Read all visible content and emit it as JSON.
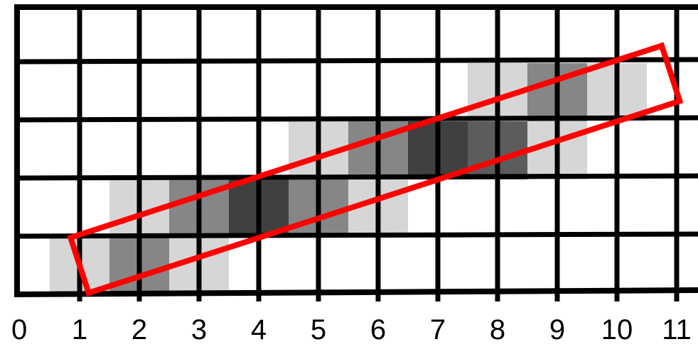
{
  "colors": {
    "background": "#ffffff",
    "grid": "#000000",
    "box": "#ff0000",
    "shades": [
      "#d6d6d6",
      "#868686",
      "#5c5c5c",
      "#404040"
    ]
  },
  "grid": {
    "columns": 11,
    "rows": 5
  },
  "axis": {
    "tick_labels": [
      "0",
      "1",
      "2",
      "3",
      "4",
      "5",
      "6",
      "7",
      "8",
      "9",
      "10",
      "11"
    ]
  },
  "pixels": [
    {
      "col": 0.5,
      "row": 0,
      "shade": 0
    },
    {
      "col": 1.5,
      "row": 0,
      "shade": 1
    },
    {
      "col": 2.5,
      "row": 0,
      "shade": 0
    },
    {
      "col": 1.5,
      "row": 1,
      "shade": 0
    },
    {
      "col": 2.5,
      "row": 1,
      "shade": 1
    },
    {
      "col": 3.5,
      "row": 1,
      "shade": 3
    },
    {
      "col": 4.5,
      "row": 1,
      "shade": 1
    },
    {
      "col": 5.5,
      "row": 1,
      "shade": 0
    },
    {
      "col": 4.5,
      "row": 2,
      "shade": 0
    },
    {
      "col": 5.5,
      "row": 2,
      "shade": 1
    },
    {
      "col": 6.5,
      "row": 2,
      "shade": 3
    },
    {
      "col": 7.5,
      "row": 2,
      "shade": 2
    },
    {
      "col": 8.5,
      "row": 2,
      "shade": 0
    },
    {
      "col": 7.5,
      "row": 3,
      "shade": 0
    },
    {
      "col": 8.5,
      "row": 3,
      "shade": 1
    },
    {
      "col": 9.5,
      "row": 3,
      "shade": 0
    }
  ],
  "sample_box": {
    "start": [
      1,
      0.5
    ],
    "end": [
      10.9,
      3.8
    ],
    "width": 1.0
  }
}
